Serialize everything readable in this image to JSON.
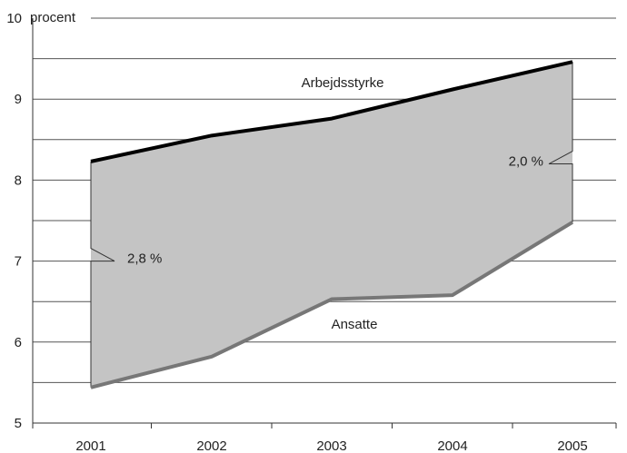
{
  "chart_data": {
    "type": "area",
    "x_categories": [
      "2001",
      "2002",
      "2003",
      "2004",
      "2005"
    ],
    "y_unit_label": "procent",
    "ylim": [
      5,
      10
    ],
    "y_ticks": [
      "5",
      "6",
      "7",
      "8",
      "9",
      "10"
    ],
    "grid": true,
    "series": [
      {
        "name": "Arbejdsstyrke",
        "color": "#000000",
        "values": [
          8.23,
          8.55,
          8.76,
          9.12,
          9.46
        ]
      },
      {
        "name": "Ansatte",
        "color": "#777777",
        "values": [
          5.44,
          5.82,
          6.53,
          6.58,
          7.48
        ]
      }
    ],
    "fill_color": "#c4c4c4",
    "annotations": [
      {
        "text": "2,8 %",
        "x_index": 0,
        "y": 7.0
      },
      {
        "text": "2,0 %",
        "x_index": 4,
        "y": 8.2
      }
    ]
  }
}
